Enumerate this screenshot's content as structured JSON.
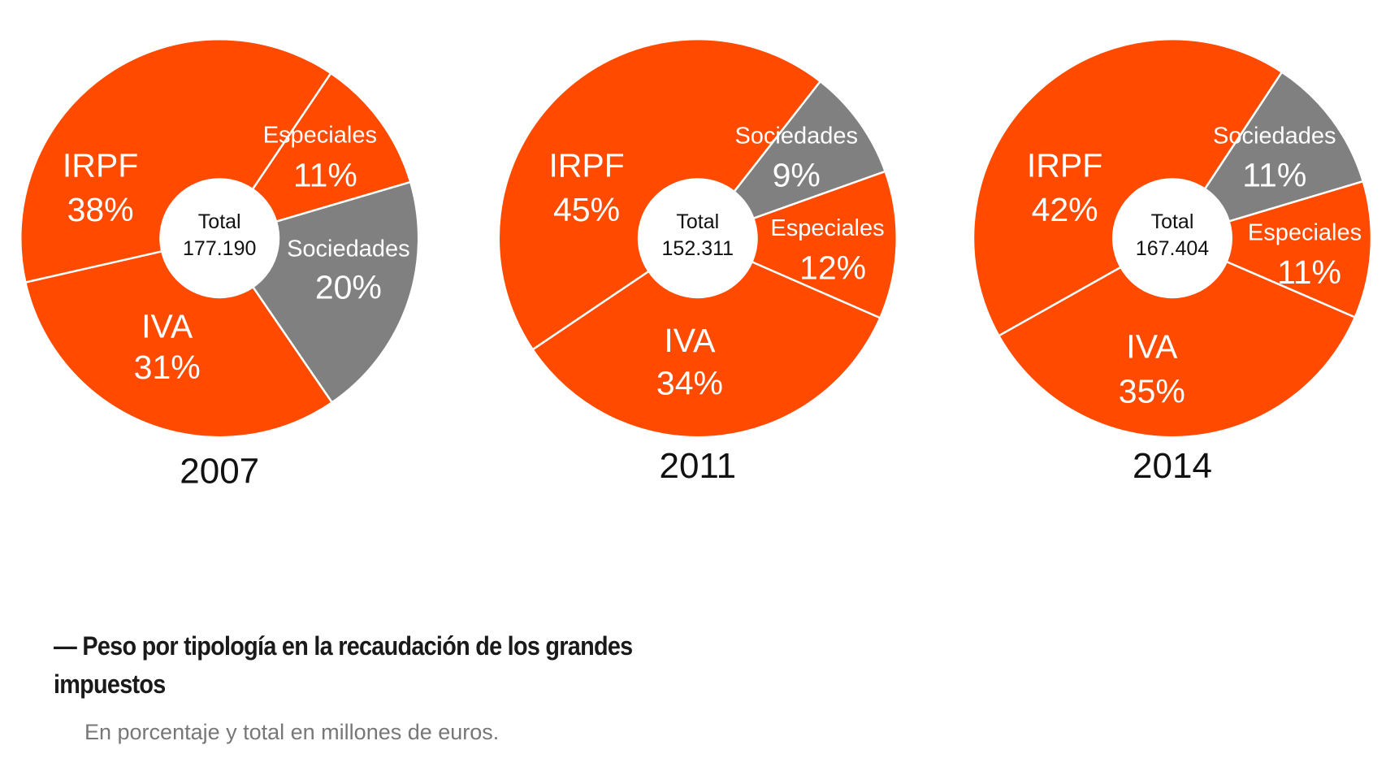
{
  "colors": {
    "orange": "#FF4A00",
    "gray": "#808080",
    "separator": "#ffffff"
  },
  "chart_data": [
    {
      "type": "pie",
      "year": "2007",
      "total_label": "Total",
      "total_value": "177.190",
      "slices": [
        {
          "name": "Especiales",
          "value": 11,
          "label": "11%",
          "color": "orange"
        },
        {
          "name": "Sociedades",
          "value": 20,
          "label": "20%",
          "color": "gray"
        },
        {
          "name": "IVA",
          "value": 31,
          "label": "31%",
          "color": "orange"
        },
        {
          "name": "IRPF",
          "value": 38,
          "label": "38%",
          "color": "orange"
        }
      ]
    },
    {
      "type": "pie",
      "year": "2011",
      "total_label": "Total",
      "total_value": "152.311",
      "slices": [
        {
          "name": "Sociedades",
          "value": 9,
          "label": "9%",
          "color": "gray"
        },
        {
          "name": "Especiales",
          "value": 12,
          "label": "12%",
          "color": "orange"
        },
        {
          "name": "IVA",
          "value": 34,
          "label": "34%",
          "color": "orange"
        },
        {
          "name": "IRPF",
          "value": 45,
          "label": "45%",
          "color": "orange"
        }
      ]
    },
    {
      "type": "pie",
      "year": "2014",
      "total_label": "Total",
      "total_value": "167.404",
      "slices": [
        {
          "name": "Sociedades",
          "value": 11,
          "label": "11%",
          "color": "gray"
        },
        {
          "name": "Especiales",
          "value": 11,
          "label": "11%",
          "color": "orange"
        },
        {
          "name": "IVA",
          "value": 35,
          "label": "35%",
          "color": "orange"
        },
        {
          "name": "IRPF",
          "value": 42,
          "label": "42%",
          "color": "orange"
        }
      ]
    }
  ],
  "caption": {
    "title": "— Peso por tipología en la recaudación de los grandes impuestos",
    "subtitle": "En porcentaje y total en millones de euros."
  }
}
